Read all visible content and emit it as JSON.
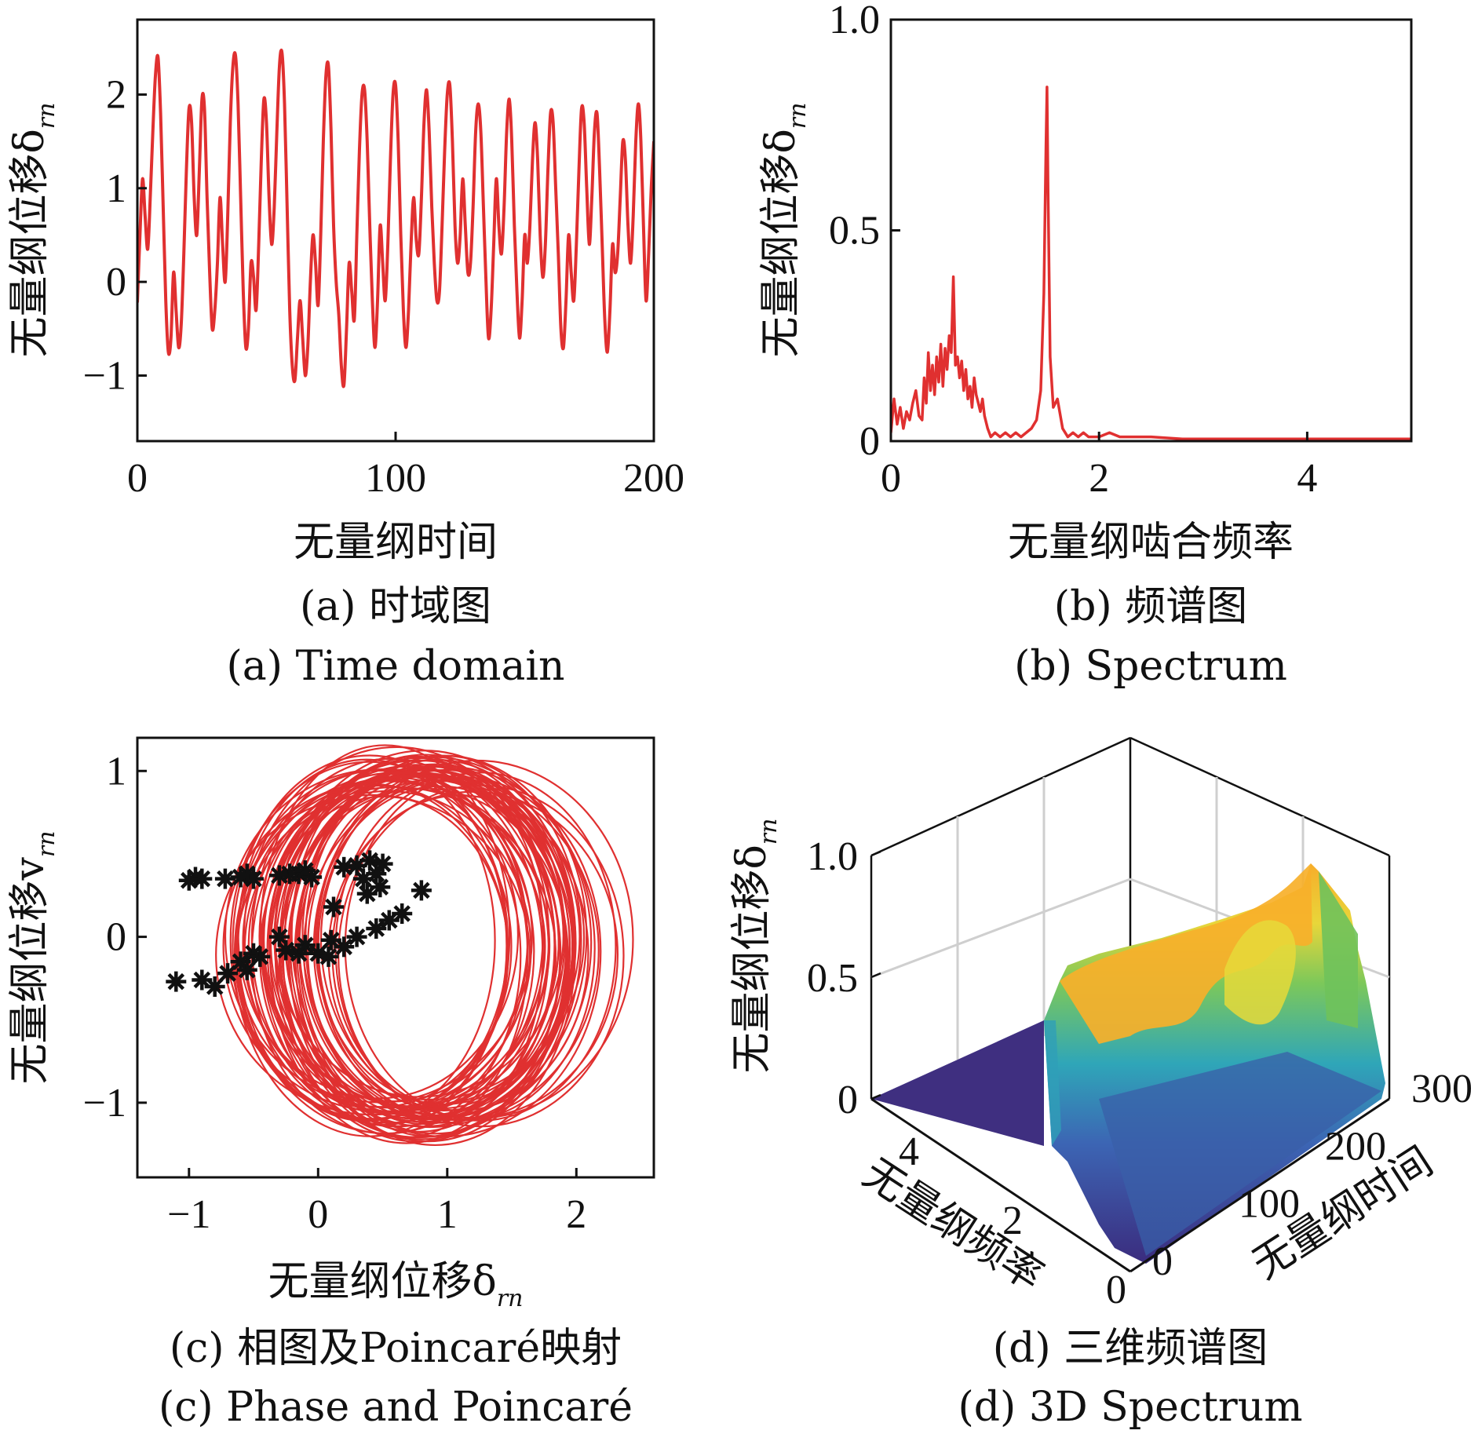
{
  "colors": {
    "line": "#e03030",
    "poincare_marker": "#111111",
    "surface_low": "#3f2f80",
    "surface_mid": "#2fa6b8",
    "surface_high": "#f7b02a"
  },
  "chart_data": [
    {
      "id": "a",
      "type": "line",
      "xlabel": "无量纲时间",
      "ylabel": "无量纲位移δ",
      "ylabel_sub": "rn",
      "xlim": [
        0,
        200
      ],
      "ylim": [
        -1.7,
        2.8
      ],
      "xticks": [
        0,
        100,
        200
      ],
      "xtick_labels": [
        "0",
        "100",
        "200"
      ],
      "yticks": [
        -1,
        0,
        1,
        2
      ],
      "ytick_labels": [
        "−1",
        "0",
        "1",
        "2"
      ],
      "caption_cn": "(a)  时域图",
      "caption_en": "(a)  Time domain",
      "series": [
        {
          "x": [
            0,
            1,
            2,
            3,
            4,
            5,
            6,
            7,
            8,
            9,
            10,
            11,
            12,
            13,
            14,
            15,
            16,
            17,
            18,
            19,
            20,
            21,
            22,
            23,
            24,
            25,
            26,
            27,
            28,
            29,
            30,
            31,
            32,
            33,
            34,
            35,
            36,
            37,
            38,
            39,
            40,
            41,
            42,
            43,
            44,
            45,
            46,
            47,
            48,
            49,
            50,
            51,
            52,
            53,
            54,
            55,
            56,
            57,
            58,
            59,
            60,
            61,
            62,
            63,
            64,
            65,
            66,
            67,
            68,
            69,
            70,
            71,
            72,
            73,
            74,
            75,
            76,
            77,
            78,
            79,
            80,
            81,
            82,
            83,
            84,
            85,
            86,
            87,
            88,
            89,
            90,
            91,
            92,
            93,
            94,
            95,
            96,
            97,
            98,
            99,
            100,
            101,
            102,
            103,
            104,
            105,
            106,
            107,
            108,
            109,
            110,
            111,
            112,
            113,
            114,
            115,
            116,
            117,
            118,
            119,
            120,
            121,
            122,
            123,
            124,
            125,
            126,
            127,
            128,
            129,
            130,
            131,
            132,
            133,
            134,
            135,
            136,
            137,
            138,
            139,
            140,
            141,
            142,
            143,
            144,
            145,
            146,
            147,
            148,
            149,
            150,
            151,
            152,
            153,
            154,
            155,
            156,
            157,
            158,
            159,
            160,
            161,
            162,
            163,
            164,
            165,
            166,
            167,
            168,
            169,
            170,
            171,
            172,
            173,
            174,
            175,
            176,
            177,
            178,
            179,
            180,
            181,
            182,
            183,
            184,
            185,
            186,
            187,
            188,
            189,
            190,
            191,
            192,
            193,
            194,
            195,
            196,
            197,
            198,
            199,
            200
          ],
          "y": [
            -0.22,
            0.5,
            1.1,
            0.7,
            0.35,
            0.9,
            1.6,
            2.2,
            2.4,
            1.8,
            0.8,
            -0.2,
            -0.75,
            -0.6,
            0.1,
            -0.3,
            -0.7,
            -0.45,
            0.3,
            1.2,
            1.85,
            1.7,
            0.9,
            0.5,
            1.2,
            1.95,
            1.85,
            0.9,
            0.1,
            -0.5,
            -0.3,
            0.2,
            0.9,
            0.4,
            0.0,
            0.7,
            1.7,
            2.3,
            2.42,
            1.9,
            0.9,
            -0.1,
            -0.7,
            -0.5,
            0.2,
            0.05,
            -0.3,
            0.4,
            1.3,
            1.95,
            1.7,
            0.9,
            0.4,
            0.8,
            1.6,
            2.3,
            2.45,
            1.9,
            0.8,
            -0.3,
            -0.9,
            -1.05,
            -0.6,
            -0.2,
            -0.6,
            -1.0,
            -0.7,
            0.0,
            0.5,
            0.2,
            -0.25,
            0.5,
            1.5,
            2.2,
            2.3,
            1.6,
            0.6,
            0.0,
            -0.35,
            -0.9,
            -1.1,
            -0.5,
            0.2,
            -0.1,
            -0.4,
            0.5,
            1.4,
            2.0,
            2.05,
            1.5,
            0.6,
            -0.2,
            -0.7,
            -0.2,
            0.6,
            0.2,
            -0.2,
            0.4,
            1.3,
            2.0,
            2.1,
            1.5,
            0.5,
            -0.3,
            -0.7,
            -0.3,
            0.4,
            0.9,
            0.45,
            0.3,
            0.9,
            1.7,
            2.05,
            1.6,
            0.8,
            0.2,
            -0.2,
            -0.1,
            0.6,
            1.4,
            2.0,
            2.1,
            1.5,
            0.6,
            0.2,
            0.5,
            1.1,
            0.6,
            0.1,
            0.2,
            0.8,
            1.6,
            1.9,
            1.6,
            0.8,
            0.0,
            -0.6,
            -0.3,
            0.4,
            1.1,
            0.6,
            0.3,
            0.8,
            1.6,
            1.95,
            1.5,
            0.6,
            -0.1,
            -0.6,
            -0.2,
            0.5,
            0.2,
            0.6,
            1.3,
            1.7,
            1.3,
            0.5,
            0.05,
            0.4,
            1.2,
            1.8,
            1.7,
            1.0,
            0.3,
            -0.5,
            -0.7,
            -0.2,
            0.5,
            0.1,
            -0.2,
            0.4,
            1.2,
            1.85,
            1.7,
            1.0,
            0.4,
            0.9,
            1.6,
            1.8,
            1.2,
            0.4,
            -0.4,
            -0.75,
            -0.3,
            0.4,
            0.1,
            0.3,
            0.9,
            1.5,
            1.3,
            0.6,
            0.2,
            0.7,
            1.5,
            1.9,
            1.5,
            0.6,
            -0.2,
            0.3,
            1.0,
            1.5
          ]
        }
      ]
    },
    {
      "id": "b",
      "type": "line",
      "xlabel": "无量纲啮合频率",
      "ylabel": "无量纲位移δ",
      "ylabel_sub": "rn",
      "xlim": [
        0,
        5
      ],
      "ylim": [
        0,
        1.0
      ],
      "xticks": [
        0,
        2,
        4
      ],
      "xtick_labels": [
        "0",
        "2",
        "4"
      ],
      "yticks": [
        0,
        0.5,
        1.0
      ],
      "ytick_labels": [
        "0",
        "0.5",
        "1.0"
      ],
      "caption_cn": "(b)  频谱图",
      "caption_en": "(b)  Spectrum",
      "series": [
        {
          "x": [
            0,
            0.03,
            0.06,
            0.09,
            0.12,
            0.15,
            0.18,
            0.21,
            0.24,
            0.27,
            0.3,
            0.32,
            0.34,
            0.36,
            0.38,
            0.4,
            0.42,
            0.44,
            0.46,
            0.48,
            0.5,
            0.52,
            0.54,
            0.56,
            0.58,
            0.6,
            0.62,
            0.64,
            0.66,
            0.68,
            0.7,
            0.72,
            0.74,
            0.76,
            0.78,
            0.8,
            0.82,
            0.84,
            0.86,
            0.88,
            0.9,
            0.93,
            0.96,
            1.0,
            1.05,
            1.1,
            1.15,
            1.2,
            1.25,
            1.3,
            1.35,
            1.4,
            1.44,
            1.47,
            1.49,
            1.5,
            1.51,
            1.53,
            1.56,
            1.6,
            1.65,
            1.7,
            1.75,
            1.8,
            1.85,
            1.9,
            2.0,
            2.1,
            2.2,
            2.3,
            2.5,
            2.8,
            3.2,
            3.6,
            4.0,
            4.5,
            5.0
          ],
          "y": [
            0.02,
            0.1,
            0.04,
            0.08,
            0.03,
            0.07,
            0.05,
            0.09,
            0.12,
            0.06,
            0.05,
            0.15,
            0.09,
            0.21,
            0.12,
            0.18,
            0.11,
            0.2,
            0.14,
            0.23,
            0.13,
            0.22,
            0.17,
            0.25,
            0.21,
            0.39,
            0.18,
            0.2,
            0.15,
            0.19,
            0.12,
            0.17,
            0.1,
            0.13,
            0.08,
            0.15,
            0.11,
            0.09,
            0.07,
            0.1,
            0.06,
            0.03,
            0.01,
            0.02,
            0.01,
            0.02,
            0.01,
            0.02,
            0.01,
            0.02,
            0.03,
            0.05,
            0.12,
            0.35,
            0.7,
            0.84,
            0.6,
            0.2,
            0.08,
            0.1,
            0.03,
            0.01,
            0.02,
            0.01,
            0.02,
            0.01,
            0.01,
            0.02,
            0.01,
            0.01,
            0.01,
            0.005,
            0.005,
            0.005,
            0.005,
            0.005,
            0.005
          ]
        }
      ]
    },
    {
      "id": "c",
      "type": "scatter",
      "xlabel": "无量纲位移δ",
      "xlabel_sub": "rn",
      "ylabel": "无量纲位移v",
      "ylabel_sub": "rn",
      "xlim": [
        -1.4,
        2.6
      ],
      "ylim": [
        -1.45,
        1.2
      ],
      "xticks": [
        -1,
        0,
        1,
        2
      ],
      "xtick_labels": [
        "−1",
        "0",
        "1",
        "2"
      ],
      "yticks": [
        -1,
        0,
        1
      ],
      "ytick_labels": [
        "−1",
        "0",
        "1"
      ],
      "caption_cn": "(c)  相图及Poincaré映射",
      "caption_en": "(c)  Phase and Poincaré",
      "orbits": {
        "cx_range": [
          0.35,
          1.3
        ],
        "rx_range": [
          0.95,
          1.25
        ],
        "cy_range": [
          -0.12,
          0.02
        ],
        "ry_range": [
          0.95,
          1.15
        ],
        "count": 60
      },
      "poincare": [
        [
          -1.0,
          0.34
        ],
        [
          -0.95,
          0.36
        ],
        [
          -0.9,
          0.35
        ],
        [
          -0.72,
          0.35
        ],
        [
          -0.6,
          0.36
        ],
        [
          -0.5,
          0.35
        ],
        [
          -0.55,
          0.38
        ],
        [
          -0.3,
          0.37
        ],
        [
          -0.22,
          0.38
        ],
        [
          -0.15,
          0.38
        ],
        [
          -0.1,
          0.4
        ],
        [
          -0.05,
          0.36
        ],
        [
          0.2,
          0.42
        ],
        [
          0.3,
          0.43
        ],
        [
          0.35,
          0.35
        ],
        [
          0.4,
          0.46
        ],
        [
          0.45,
          0.38
        ],
        [
          0.5,
          0.44
        ],
        [
          0.48,
          0.3
        ],
        [
          0.38,
          0.26
        ],
        [
          0.8,
          0.28
        ],
        [
          0.12,
          0.18
        ],
        [
          0.65,
          0.14
        ],
        [
          0.55,
          0.1
        ],
        [
          0.45,
          0.05
        ],
        [
          0.3,
          0.0
        ],
        [
          -1.1,
          -0.27
        ],
        [
          -0.9,
          -0.26
        ],
        [
          -0.8,
          -0.3
        ],
        [
          -0.7,
          -0.22
        ],
        [
          -0.6,
          -0.15
        ],
        [
          -0.5,
          -0.1
        ],
        [
          -0.55,
          -0.2
        ],
        [
          -0.45,
          -0.12
        ],
        [
          -0.3,
          0.0
        ],
        [
          -0.25,
          -0.08
        ],
        [
          -0.15,
          -0.1
        ],
        [
          -0.1,
          -0.05
        ],
        [
          0.0,
          -0.1
        ],
        [
          0.1,
          -0.02
        ],
        [
          0.08,
          -0.12
        ],
        [
          0.2,
          -0.06
        ]
      ]
    },
    {
      "id": "d",
      "type": "surface3d",
      "xlabel": "无量纲频率",
      "ylabel": "无量纲时间",
      "zlabel": "无量纲位移δ",
      "zlabel_sub": "rn",
      "zlim": [
        0,
        1.0
      ],
      "zticks": [
        0,
        0.5,
        1.0
      ],
      "ztick_labels": [
        "0",
        "0.5",
        "1.0"
      ],
      "freq_ticks": [
        0,
        2,
        4
      ],
      "freq_tick_labels": [
        "0",
        "2",
        "4"
      ],
      "time_ticks": [
        0,
        100,
        200,
        300
      ],
      "time_tick_labels": [
        "0",
        "100",
        "200",
        "300"
      ],
      "caption_cn": "(d)  三维频谱图",
      "caption_en": "(d)  3D Spectrum"
    }
  ]
}
